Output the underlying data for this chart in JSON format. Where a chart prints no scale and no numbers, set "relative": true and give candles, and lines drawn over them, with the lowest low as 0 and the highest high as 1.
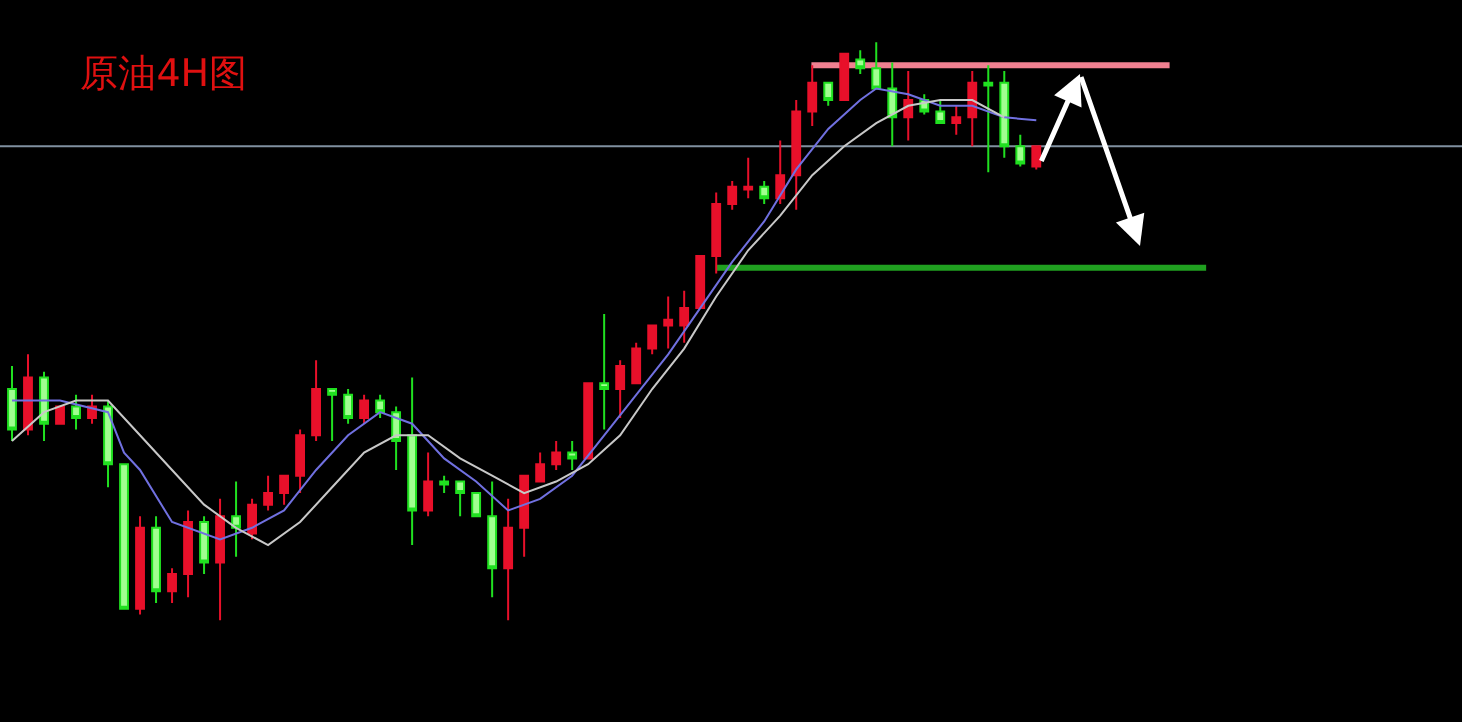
{
  "chart_data": {
    "type": "candlestick",
    "title": "原油4H图",
    "relative": true,
    "tick_labels": false,
    "grid": false,
    "categories": [
      null,
      null,
      null,
      null,
      null,
      null,
      null,
      null,
      null,
      null,
      null,
      null,
      null,
      null,
      null,
      null,
      null,
      null,
      null,
      null,
      null,
      null,
      null,
      null,
      null,
      null,
      null,
      null,
      null,
      null,
      null,
      null,
      null,
      null,
      null,
      null,
      null,
      null,
      null,
      null,
      null,
      null,
      null,
      null,
      null,
      null,
      null,
      null,
      null,
      null,
      null,
      null,
      null,
      null,
      null,
      null,
      null,
      null,
      null,
      null,
      null,
      null,
      null,
      null,
      null
    ],
    "ohlc": [
      [
        0.4,
        0.44,
        0.31,
        0.33
      ],
      [
        0.33,
        0.46,
        0.32,
        0.42
      ],
      [
        0.42,
        0.43,
        0.31,
        0.34
      ],
      [
        0.34,
        0.37,
        0.34,
        0.37
      ],
      [
        0.37,
        0.39,
        0.33,
        0.35
      ],
      [
        0.35,
        0.39,
        0.34,
        0.37
      ],
      [
        0.37,
        0.38,
        0.23,
        0.27
      ],
      [
        0.27,
        0.27,
        0.02,
        0.02
      ],
      [
        0.02,
        0.18,
        0.01,
        0.16
      ],
      [
        0.16,
        0.18,
        0.03,
        0.05
      ],
      [
        0.05,
        0.09,
        0.03,
        0.08
      ],
      [
        0.08,
        0.19,
        0.04,
        0.17
      ],
      [
        0.17,
        0.18,
        0.08,
        0.1
      ],
      [
        0.1,
        0.21,
        0,
        0.18
      ],
      [
        0.18,
        0.24,
        0.11,
        0.16
      ],
      [
        0.15,
        0.21,
        0.14,
        0.2
      ],
      [
        0.2,
        0.25,
        0.19,
        0.22
      ],
      [
        0.22,
        0.25,
        0.2,
        0.25
      ],
      [
        0.25,
        0.33,
        0.22,
        0.32
      ],
      [
        0.32,
        0.45,
        0.31,
        0.4
      ],
      [
        0.4,
        0.4,
        0.31,
        0.39
      ],
      [
        0.39,
        0.4,
        0.34,
        0.35
      ],
      [
        0.35,
        0.39,
        0.34,
        0.38
      ],
      [
        0.38,
        0.39,
        0.35,
        0.36
      ],
      [
        0.36,
        0.37,
        0.26,
        0.31
      ],
      [
        0.32,
        0.42,
        0.13,
        0.19
      ],
      [
        0.19,
        0.29,
        0.18,
        0.24
      ],
      [
        0.24,
        0.25,
        0.22,
        0.235
      ],
      [
        0.24,
        0.24,
        0.18,
        0.22
      ],
      [
        0.22,
        0.22,
        0.18,
        0.18
      ],
      [
        0.18,
        0.24,
        0.04,
        0.09
      ],
      [
        0.09,
        0.21,
        0,
        0.16
      ],
      [
        0.16,
        0.25,
        0.11,
        0.25
      ],
      [
        0.24,
        0.29,
        0.24,
        0.27
      ],
      [
        0.27,
        0.31,
        0.26,
        0.29
      ],
      [
        0.29,
        0.31,
        0.26,
        0.28
      ],
      [
        0.28,
        0.41,
        0.28,
        0.41
      ],
      [
        0.41,
        0.53,
        0.33,
        0.4
      ],
      [
        0.4,
        0.45,
        0.35,
        0.44
      ],
      [
        0.41,
        0.48,
        0.41,
        0.47
      ],
      [
        0.47,
        0.51,
        0.46,
        0.51
      ],
      [
        0.51,
        0.56,
        0.47,
        0.52
      ],
      [
        0.51,
        0.57,
        0.48,
        0.54
      ],
      [
        0.54,
        0.63,
        0.54,
        0.63
      ],
      [
        0.63,
        0.74,
        0.6,
        0.72
      ],
      [
        0.72,
        0.76,
        0.71,
        0.75
      ],
      [
        0.745,
        0.8,
        0.73,
        0.75
      ],
      [
        0.75,
        0.76,
        0.72,
        0.73
      ],
      [
        0.73,
        0.83,
        0.72,
        0.77
      ],
      [
        0.77,
        0.9,
        0.71,
        0.88
      ],
      [
        0.88,
        0.96,
        0.855,
        0.93
      ],
      [
        0.93,
        0.93,
        0.89,
        0.9
      ],
      [
        0.9,
        0.98,
        0.9,
        0.98
      ],
      [
        0.97,
        0.986,
        0.945,
        0.955
      ],
      [
        0.955,
        1,
        0.92,
        0.92
      ],
      [
        0.92,
        0.965,
        0.82,
        0.87
      ],
      [
        0.87,
        0.95,
        0.83,
        0.9
      ],
      [
        0.9,
        0.91,
        0.875,
        0.88
      ],
      [
        0.88,
        0.9,
        0.86,
        0.86
      ],
      [
        0.86,
        0.89,
        0.84,
        0.87
      ],
      [
        0.87,
        0.95,
        0.82,
        0.93
      ],
      [
        0.93,
        0.96,
        0.775,
        0.925
      ],
      [
        0.93,
        0.95,
        0.8,
        0.82
      ],
      [
        0.82,
        0.84,
        0.785,
        0.79
      ],
      [
        0.785,
        0.82,
        0.78,
        0.82
      ]
    ],
    "series": [
      {
        "type": "line",
        "color": "#7070e0",
        "values": [
          0.38,
          null,
          null,
          0.38,
          null,
          null,
          0.36,
          0.29,
          0.26,
          null,
          0.17,
          null,
          null,
          0.14,
          null,
          0.16,
          null,
          0.19,
          null,
          0.26,
          null,
          0.32,
          null,
          0.36,
          null,
          0.34,
          null,
          0.28,
          null,
          0.24,
          null,
          0.19,
          null,
          0.21,
          null,
          0.25,
          null,
          0.32,
          null,
          0.39,
          null,
          0.46,
          null,
          0.54,
          null,
          0.62,
          null,
          0.69,
          null,
          0.78,
          null,
          0.85,
          null,
          0.9,
          0.92,
          null,
          0.91,
          null,
          0.89,
          null,
          0.89,
          null,
          0.87,
          null,
          0.865
        ]
      },
      {
        "type": "line",
        "color": "#c8c8c8",
        "values": [
          0.31,
          null,
          0.36,
          null,
          0.38,
          null,
          0.38,
          null,
          0.32,
          null,
          0.26,
          null,
          0.2,
          null,
          0.16,
          null,
          0.13,
          null,
          0.17,
          null,
          0.23,
          null,
          0.29,
          null,
          0.32,
          null,
          0.32,
          null,
          0.28,
          null,
          0.25,
          null,
          0.22,
          null,
          0.24,
          null,
          0.27,
          null,
          0.32,
          null,
          0.4,
          null,
          0.47,
          null,
          0.56,
          null,
          0.64,
          null,
          0.7,
          null,
          0.77,
          null,
          0.82,
          null,
          0.86,
          null,
          0.89,
          null,
          0.9,
          null,
          0.9,
          null,
          0.87,
          null,
          null
        ]
      }
    ],
    "ref_lines": [
      {
        "axis": "y",
        "value": 0.82,
        "color": "#8090a0"
      },
      {
        "axis": "y",
        "value": 0.96,
        "color": "#f08090"
      },
      {
        "axis": "y",
        "value": 0.61,
        "color": "#20a020"
      }
    ]
  }
}
